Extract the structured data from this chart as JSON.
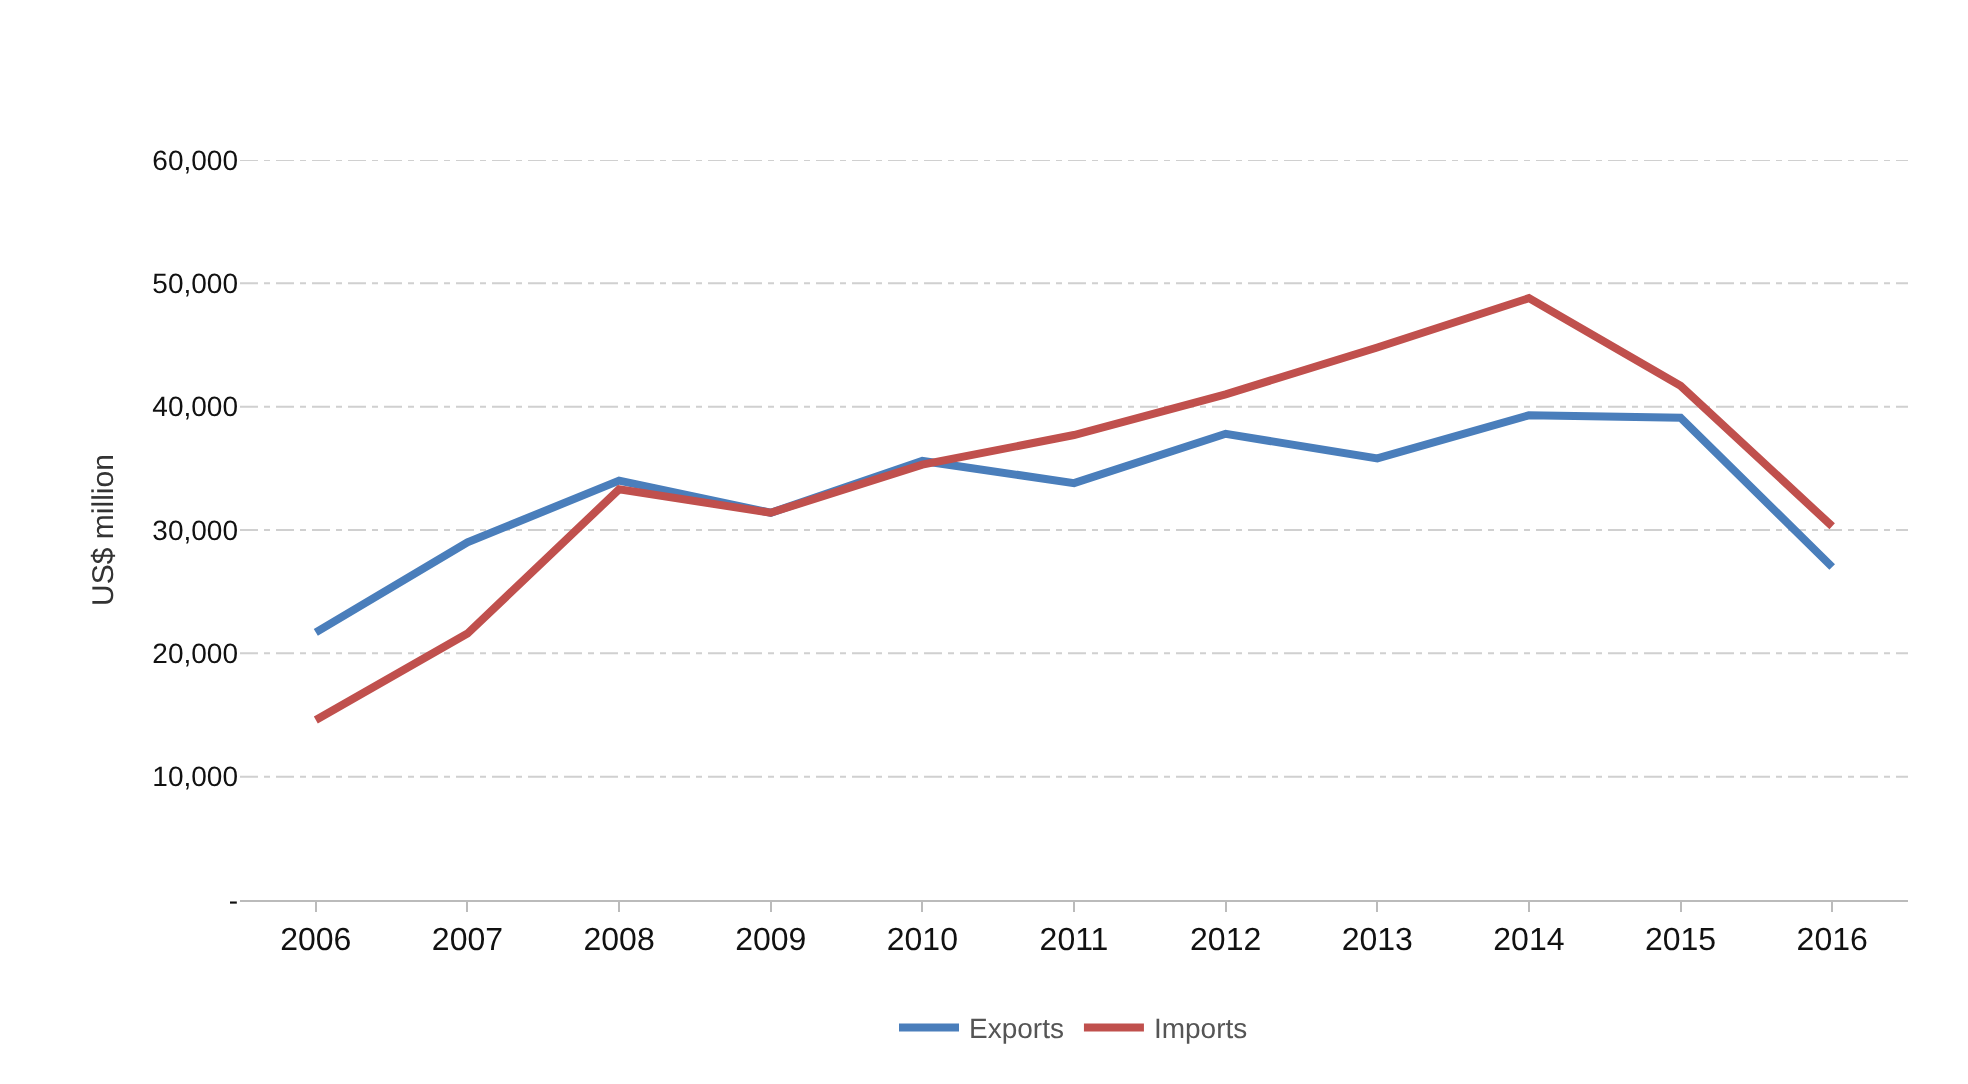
{
  "chart_data": {
    "type": "line",
    "ylabel": "US$ million",
    "categories": [
      "2006",
      "2007",
      "2008",
      "2009",
      "2010",
      "2011",
      "2012",
      "2013",
      "2014",
      "2015",
      "2016"
    ],
    "series": [
      {
        "name": "Exports",
        "color": "#4a7ebb",
        "values": [
          21700,
          29000,
          34000,
          31400,
          35600,
          33800,
          37800,
          35800,
          39300,
          39100,
          27000
        ]
      },
      {
        "name": "Imports",
        "color": "#c0504d",
        "values": [
          14600,
          21600,
          33300,
          31400,
          35300,
          37700,
          41000,
          44800,
          48800,
          41700,
          30300
        ]
      }
    ],
    "ylim": [
      0,
      60000
    ],
    "yticks": [
      {
        "value": 0,
        "label": "-"
      },
      {
        "value": 10000,
        "label": "10,000"
      },
      {
        "value": 20000,
        "label": "20,000"
      },
      {
        "value": 30000,
        "label": "30,000"
      },
      {
        "value": 40000,
        "label": "40,000"
      },
      {
        "value": 50000,
        "label": "50,000"
      },
      {
        "value": 60000,
        "label": "60,000"
      }
    ],
    "grid": "y",
    "legend": "bottom",
    "marker": "none",
    "line_style": "solid"
  }
}
